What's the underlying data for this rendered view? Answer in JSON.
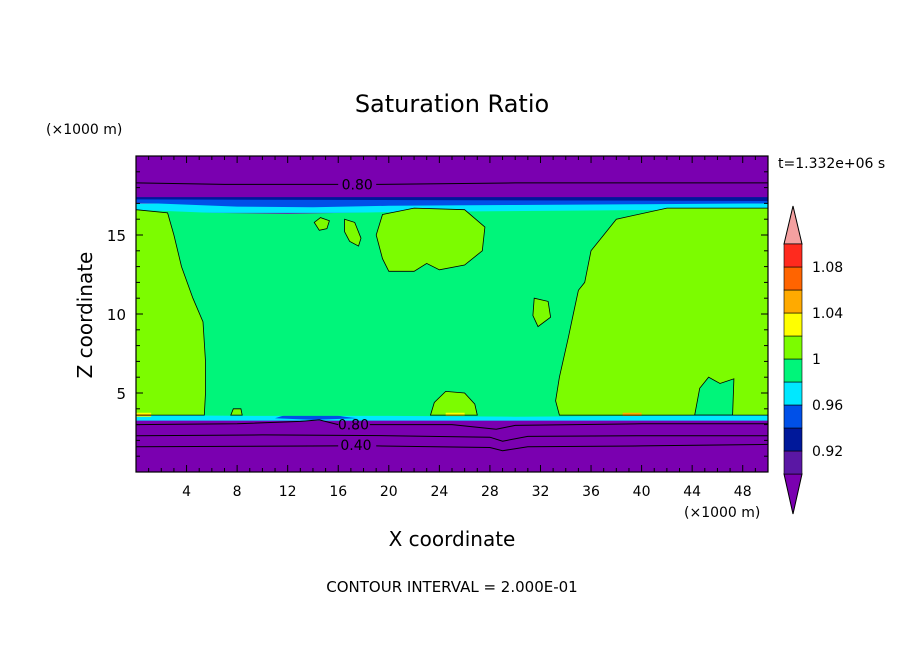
{
  "chart_data": {
    "type": "contour",
    "title": "Saturation Ratio",
    "xlabel": "X coordinate",
    "ylabel": "Z coordinate",
    "x_unit": "(×1000 m)",
    "y_unit": "(×1000 m)",
    "time_label": "t=1.332e+06 s",
    "footer": "CONTOUR INTERVAL = 2.000E-01",
    "xlim": [
      0,
      50
    ],
    "ylim": [
      0,
      20
    ],
    "x_ticks": [
      4,
      8,
      12,
      16,
      20,
      24,
      28,
      32,
      36,
      40,
      44,
      48
    ],
    "y_ticks": [
      5,
      10,
      15
    ],
    "contour_labels": [
      {
        "text": "0.80",
        "x": 17.5,
        "y": 18.2
      },
      {
        "text": "0.80",
        "x": 17.2,
        "y": 3.0
      },
      {
        "text": "0.40",
        "x": 17.4,
        "y": 1.7
      }
    ],
    "colorbar": {
      "levels": [
        0.92,
        0.96,
        1,
        1.04,
        1.08
      ],
      "level_labels": [
        "0.92",
        "0.96",
        "1",
        "1.04",
        "1.08"
      ],
      "bins": [
        {
          "lo": null,
          "hi": 0.9,
          "color": "#7a00b0"
        },
        {
          "lo": 0.9,
          "hi": 0.92,
          "color": "#5a17a4"
        },
        {
          "lo": 0.92,
          "hi": 0.94,
          "color": "#00189a"
        },
        {
          "lo": 0.94,
          "hi": 0.96,
          "color": "#0050e8"
        },
        {
          "lo": 0.96,
          "hi": 0.98,
          "color": "#00e8ff"
        },
        {
          "lo": 0.98,
          "hi": 1.0,
          "color": "#00f57a"
        },
        {
          "lo": 1.0,
          "hi": 1.02,
          "color": "#7cfc00"
        },
        {
          "lo": 1.02,
          "hi": 1.04,
          "color": "#ffff00"
        },
        {
          "lo": 1.04,
          "hi": 1.06,
          "color": "#ffaa00"
        },
        {
          "lo": 1.06,
          "hi": 1.08,
          "color": "#ff6400"
        },
        {
          "lo": 1.08,
          "hi": 1.1,
          "color": "#ff2a1e"
        },
        {
          "lo": 1.1,
          "hi": null,
          "color": "#f4a0a0"
        }
      ]
    },
    "colors": {
      "dry": "#7a00b0",
      "near_one": "#00f57a",
      "above_one": "#7cfc00",
      "edge_blue": "#0050e8",
      "edge_cyan": "#00e8ff",
      "edge_dark": "#00189a",
      "edge_yellow": "#ffff00",
      "edge_orange": "#ffaa00"
    }
  }
}
